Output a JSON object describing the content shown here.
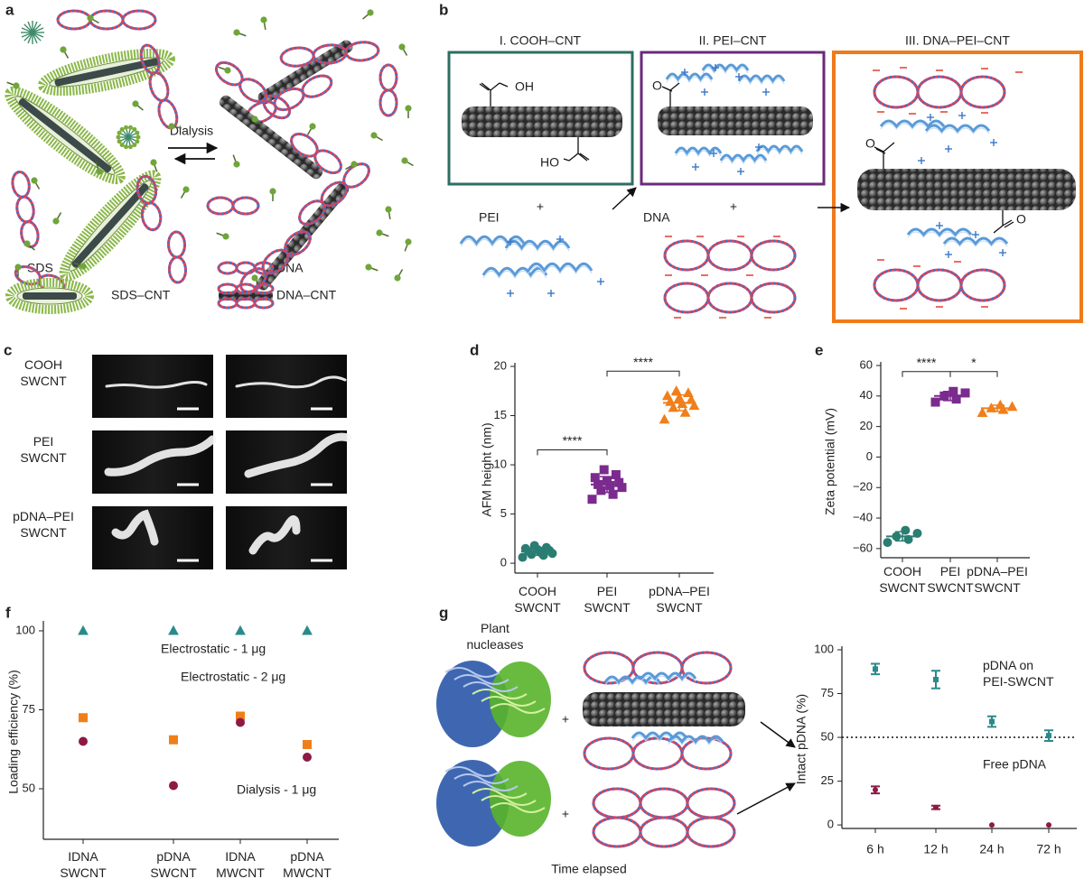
{
  "panels": {
    "a": {
      "label": "a",
      "arrow_label": "Dialysis",
      "legend": [
        "SDS",
        "SDS–CNT",
        "DNA",
        "DNA–CNT"
      ]
    },
    "b": {
      "label": "b",
      "boxes": [
        "I. COOH–CNT",
        "II. PEI–CNT",
        "III. DNA–PEI–CNT"
      ],
      "reagents": [
        "PEI",
        "DNA"
      ],
      "plus": "+",
      "hydroxyl": "OH",
      "hydroxyl_left": "HO",
      "oxygen": "O"
    },
    "c": {
      "label": "c",
      "rows": [
        "COOH\nSWCNT",
        "PEI\nSWCNT",
        "pDNA–PEI\nSWCNT"
      ]
    },
    "d": {
      "label": "d"
    },
    "e": {
      "label": "e"
    },
    "f": {
      "label": "f"
    },
    "g": {
      "label": "g",
      "enzymes": "Plant\nnucleases",
      "plus": "+",
      "x_caption": "Time elapsed"
    }
  },
  "chart_data": [
    {
      "type": "dot",
      "y_label": "AFM height (nm)",
      "categories": [
        "COOH\nSWCNT",
        "PEI\nSWCNT",
        "pDNA–PEI\nSWCNT"
      ],
      "colors": [
        "#2a7d72",
        "#7b2a8e",
        "#f07f1a"
      ],
      "markers": [
        "circle",
        "square",
        "triangle"
      ],
      "values": [
        [
          0.6,
          0.8,
          0.9,
          1.0,
          1.1,
          1.2,
          1.3,
          1.4,
          1.5,
          1.6,
          1.8
        ],
        [
          6.5,
          7.0,
          7.4,
          7.7,
          7.9,
          8.0,
          8.2,
          8.4,
          8.7,
          9.0,
          9.5
        ],
        [
          14.6,
          15.3,
          15.8,
          16.0,
          16.2,
          16.4,
          16.6,
          16.8,
          17.0,
          17.3,
          17.5
        ]
      ],
      "means": [
        1.2,
        8.0,
        16.3
      ],
      "sds": [
        0.4,
        0.8,
        0.8
      ],
      "annotations": [
        {
          "text": "****",
          "from": 0,
          "to": 1
        },
        {
          "text": "****",
          "from": 1,
          "to": 2
        }
      ],
      "ylim": [
        -1,
        20
      ],
      "yticks": [
        0,
        5,
        10,
        15,
        20
      ]
    },
    {
      "type": "dot",
      "y_label": "Zeta potential (mV)",
      "categories": [
        "COOH\nSWCNT",
        "PEI\nSWCNT",
        "pDNA–PEI\nSWCNT"
      ],
      "colors": [
        "#2a7d72",
        "#7b2a8e",
        "#f07f1a"
      ],
      "markers": [
        "circle",
        "square",
        "triangle"
      ],
      "values": [
        [
          -56,
          -54,
          -52,
          -50,
          -48
        ],
        [
          36,
          38,
          40,
          42,
          43
        ],
        [
          29,
          31,
          32,
          33,
          34
        ]
      ],
      "means": [
        -52,
        40,
        32
      ],
      "sds": [
        3,
        3,
        2
      ],
      "annotations": [
        {
          "text": "****",
          "from": 0,
          "to": 1
        },
        {
          "text": "*",
          "from": 1,
          "to": 2
        }
      ],
      "ylim": [
        -66,
        60
      ],
      "yticks": [
        {
          "value": -60,
          "label": "−60"
        },
        {
          "value": -40,
          "label": "−40"
        },
        {
          "value": -20,
          "label": "−20"
        },
        0,
        20,
        40,
        60
      ]
    },
    {
      "type": "scatter",
      "y_label": "Loading efficiency (%)",
      "categories": [
        "IDNA\nSWCNT",
        "pDNA\nSWCNT",
        "IDNA\nMWCNT",
        "pDNA\nMWCNT"
      ],
      "series": [
        {
          "name": "Electrostatic - 1 μg",
          "color": "#2a8a8a",
          "marker": "triangle",
          "values": [
            100,
            100,
            100,
            100
          ]
        },
        {
          "name": "Electrostatic - 2 μg",
          "color": "#f07f1a",
          "marker": "square",
          "values": [
            72.5,
            65.5,
            73,
            64
          ]
        },
        {
          "name": "Dialysis - 1 μg",
          "color": "#8c1a44",
          "marker": "circle",
          "values": [
            65,
            51,
            71,
            60
          ]
        }
      ],
      "ylim": [
        34,
        102
      ],
      "yticks": [
        50,
        75,
        100
      ]
    },
    {
      "type": "scatter",
      "y_label": "Intact pDNA (%)",
      "categories": [
        "6 h",
        "12 h",
        "24 h",
        "72 h"
      ],
      "series": [
        {
          "name": "pDNA on\nPEI-SWCNT",
          "color": "#2a8a8a",
          "marker": "square",
          "values": [
            89,
            83,
            59,
            51
          ],
          "errors": [
            3,
            5,
            3,
            3
          ]
        },
        {
          "name": "Free pDNA",
          "color": "#8c1a44",
          "marker": "circle",
          "values": [
            20,
            10,
            0,
            0
          ],
          "errors": [
            2,
            1,
            0,
            0
          ]
        }
      ],
      "reference_line": 50,
      "ylim": [
        -2,
        100
      ],
      "yticks": [
        0,
        25,
        50,
        75,
        100
      ]
    }
  ]
}
